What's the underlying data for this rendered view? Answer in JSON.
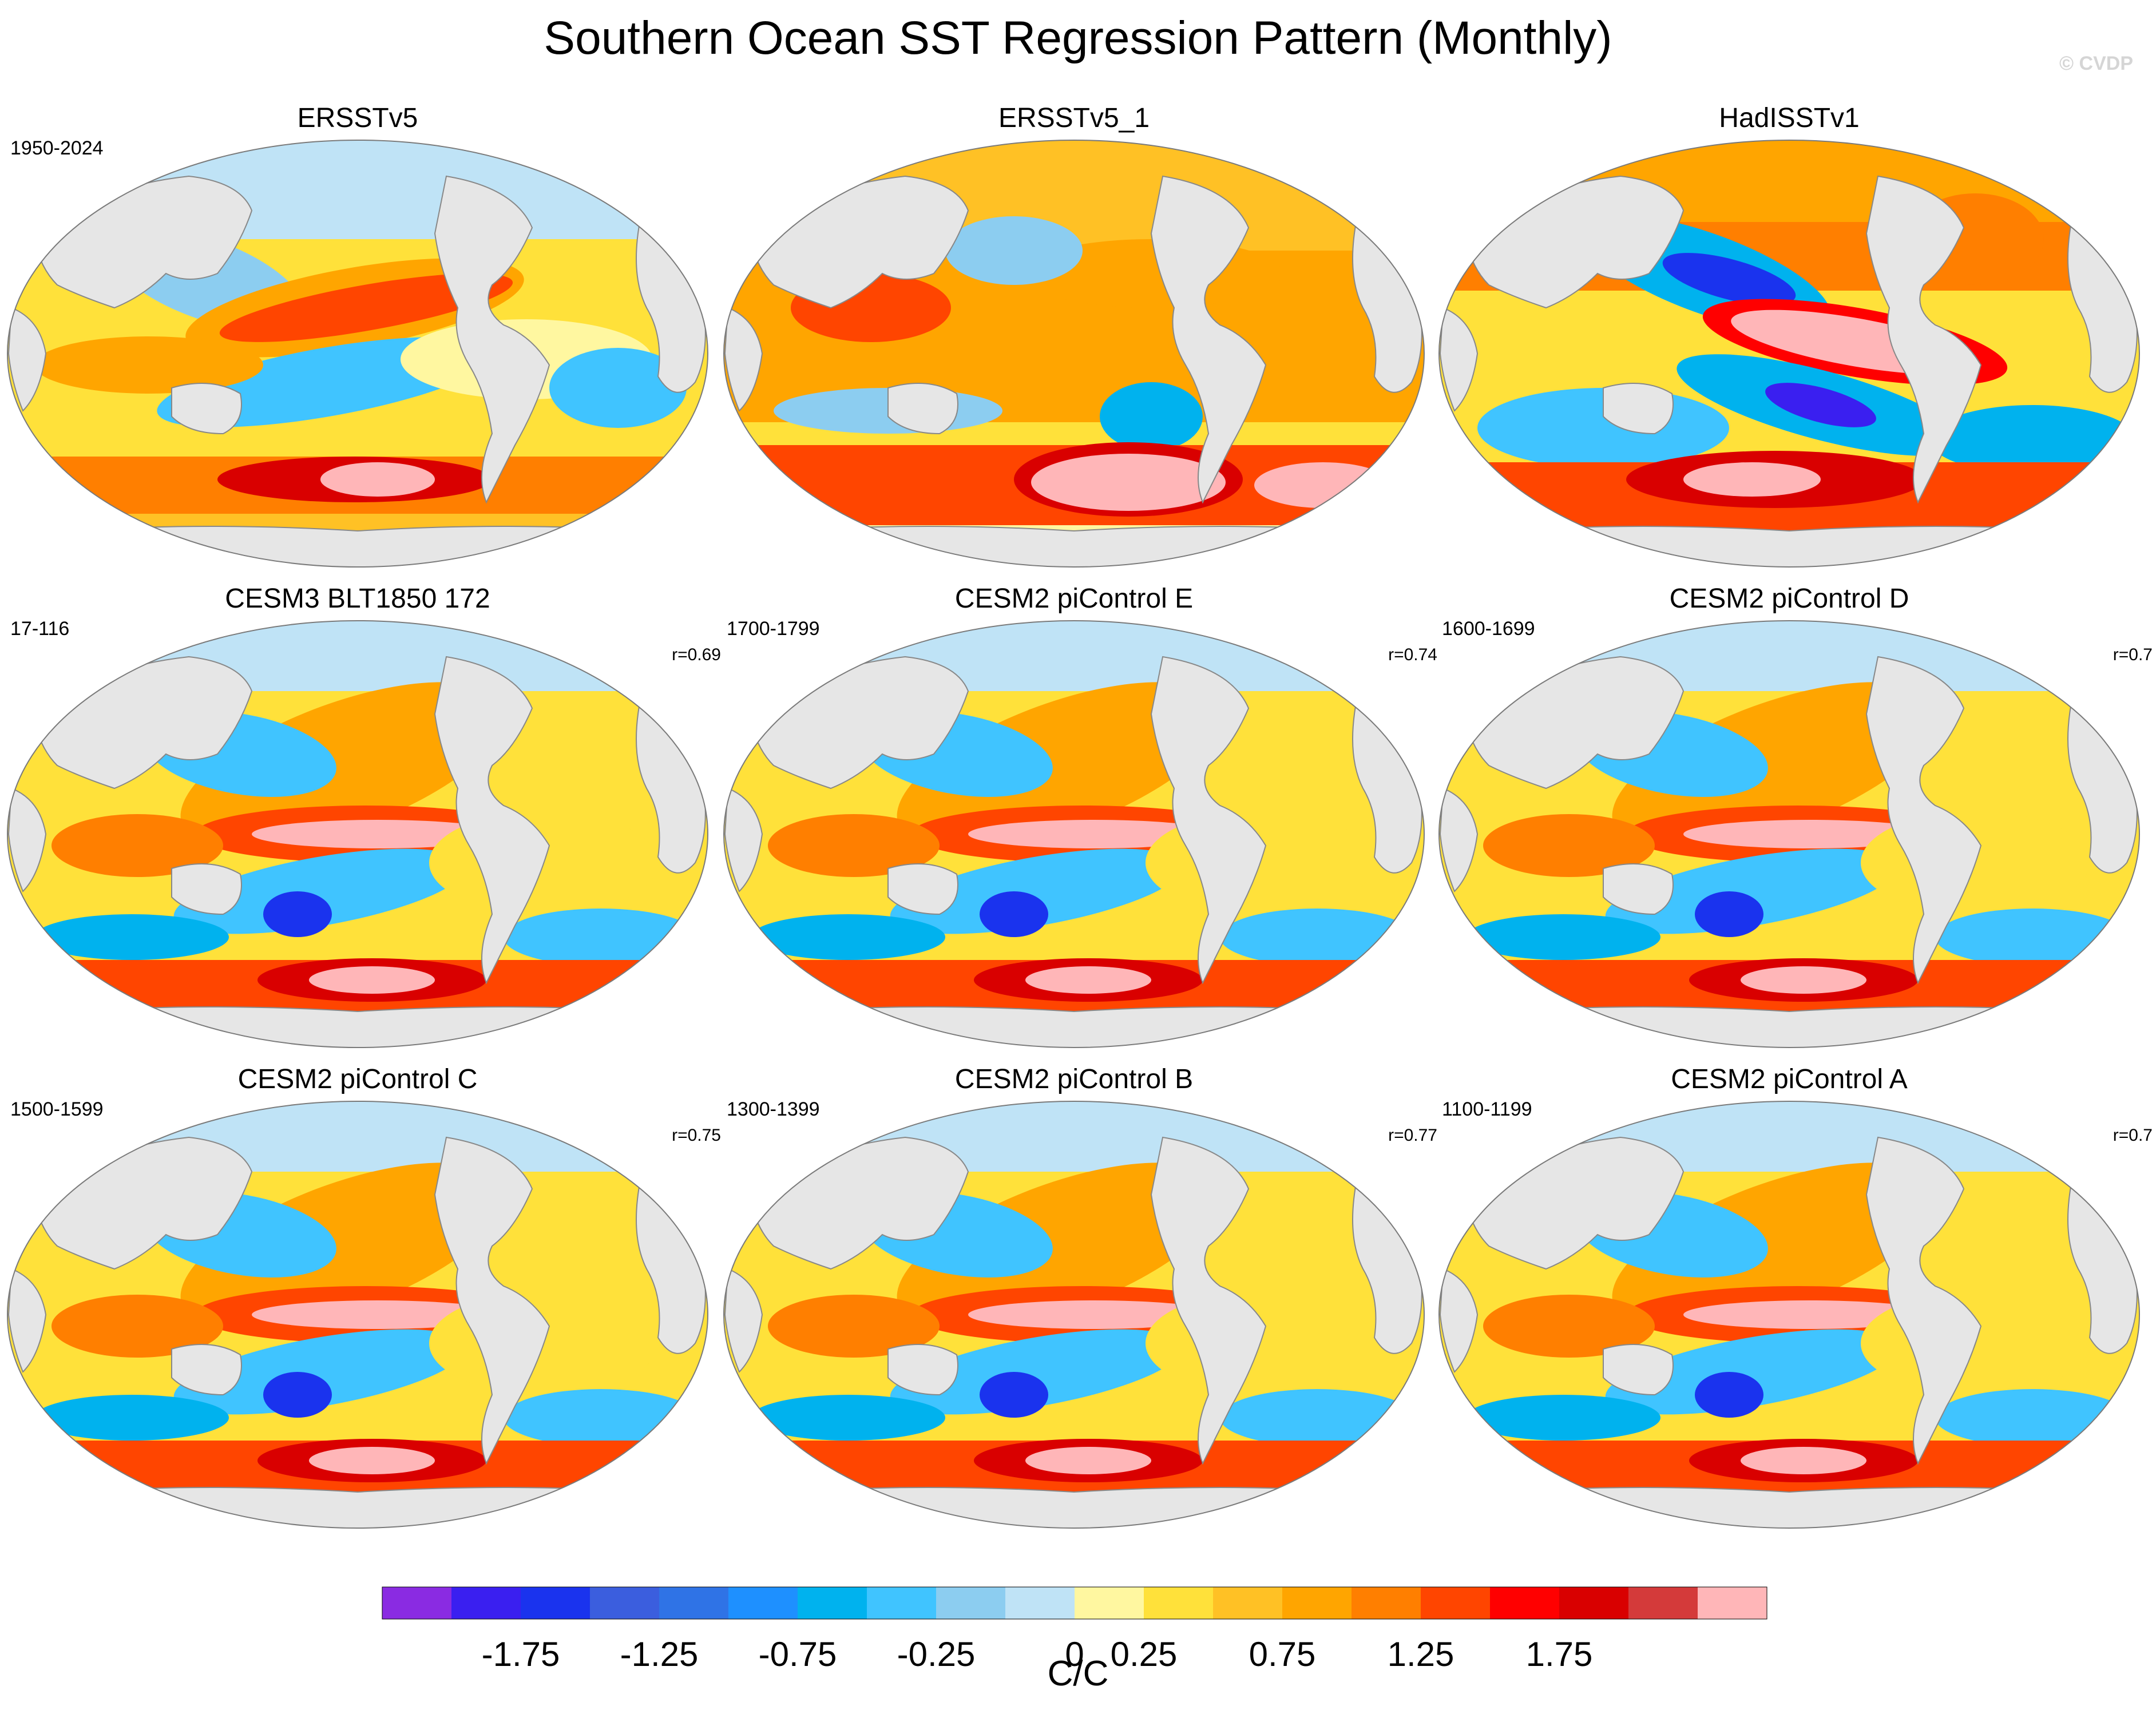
{
  "title": "Southern Ocean SST Regression Pattern (Monthly)",
  "credit": "© CVDP",
  "panels": [
    {
      "title": "ERSSTv5",
      "period": "1950-2024",
      "corr": "",
      "pattern": "obs1"
    },
    {
      "title": "ERSSTv5_1",
      "period": "",
      "corr": "",
      "pattern": "obs2"
    },
    {
      "title": "HadISSTv1",
      "period": "",
      "corr": "",
      "pattern": "obs3"
    },
    {
      "title": "CESM3 BLT1850 172",
      "period": "17-116",
      "corr": "r=0.69",
      "pattern": "model"
    },
    {
      "title": "CESM2 piControl E",
      "period": "1700-1799",
      "corr": "r=0.74",
      "pattern": "model"
    },
    {
      "title": "CESM2 piControl D",
      "period": "1600-1699",
      "corr": "r=0.7",
      "pattern": "model"
    },
    {
      "title": "CESM2 piControl C",
      "period": "1500-1599",
      "corr": "r=0.75",
      "pattern": "model"
    },
    {
      "title": "CESM2 piControl B",
      "period": "1300-1399",
      "corr": "r=0.77",
      "pattern": "model"
    },
    {
      "title": "CESM2 piControl A",
      "period": "1100-1199",
      "corr": "r=0.7",
      "pattern": "model"
    }
  ],
  "colorbar": {
    "units": "C/C",
    "labels": [
      "-1.75",
      "-1.25",
      "-0.75",
      "-0.25",
      "0",
      "0.25",
      "0.75",
      "1.25",
      "1.75"
    ],
    "colors": [
      "#8a2be2",
      "#3a1ff0",
      "#1a33ee",
      "#3b5ede",
      "#2f73e6",
      "#1e90ff",
      "#00b2ee",
      "#40c4ff",
      "#8ccdf0",
      "#bfe3f6",
      "#fff7a0",
      "#ffe13a",
      "#ffc125",
      "#ffa500",
      "#ff7f00",
      "#ff4500",
      "#ff0000",
      "#d90000",
      "#d43a3a",
      "#ffb6b8"
    ]
  },
  "map_colors": {
    "land": "#e6e6e6",
    "coast": "#888888",
    "neutral": "#fff4a8"
  }
}
